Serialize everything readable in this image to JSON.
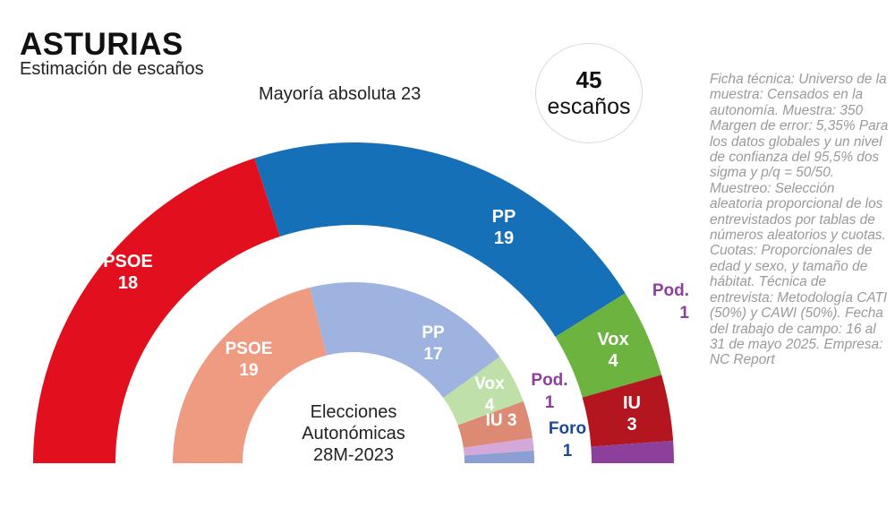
{
  "header": {
    "title": "ASTURIAS",
    "subtitle": "Estimación de escaños",
    "majority": "Mayoría absoluta 23",
    "total_seats_number": "45",
    "total_seats_word": "escaños"
  },
  "ficha_tecnica": "Ficha técnica: Universo de la muestra: Censados en la autonomía. Muestra: 350 Margen de error: 5,35% Para los datos globales y un nivel de confianza del 95,5% dos sigma y p/q = 50/50. Muestreo: Selección aleatoria proporcional de los entrevistados por tablas de números aleatorios y cuotas. Cuotas: Proporcionales de edad y sexo, y tamaño de hábitat. Técnica de entrevista: Metodología CATI (50%) y CAWI (50%). Fecha del trabajo de campo: 16 al 31 de mayo 2025. Empresa: NC Report",
  "chart_data": [
    {
      "type": "parliament",
      "name": "Estimación de escaños",
      "total": 45,
      "series": [
        {
          "party": "PSOE",
          "seats": 18,
          "color": "#e2101e"
        },
        {
          "party": "PP",
          "seats": 19,
          "color": "#1670b8"
        },
        {
          "party": "Vox",
          "seats": 4,
          "color": "#6db33f"
        },
        {
          "party": "IU",
          "seats": 3,
          "color": "#b3161f"
        },
        {
          "party": "Pod.",
          "seats": 1,
          "color": "#8c3f9b"
        }
      ]
    },
    {
      "type": "parliament",
      "name": "Elecciones Autonómicas 28M-2023",
      "label_lines": [
        "Elecciones",
        "Autonómicas",
        "28M-2023"
      ],
      "total": 45,
      "series": [
        {
          "party": "PSOE",
          "seats": 19,
          "color": "#ef9b82"
        },
        {
          "party": "PP",
          "seats": 17,
          "color": "#9fb3e0"
        },
        {
          "party": "Vox",
          "seats": 4,
          "color": "#bfe0a8"
        },
        {
          "party": "IU",
          "seats": 3,
          "color": "#dd8a74"
        },
        {
          "party": "Pod.",
          "seats": 1,
          "color": "#d4a9d9"
        },
        {
          "party": "Foro",
          "seats": 1,
          "color": "#8c9fd2"
        }
      ]
    }
  ],
  "colors": {
    "podemos_label": "#8c3f9b",
    "foro_label": "#1c4a96",
    "ficha_text": "#9a9a9a"
  }
}
